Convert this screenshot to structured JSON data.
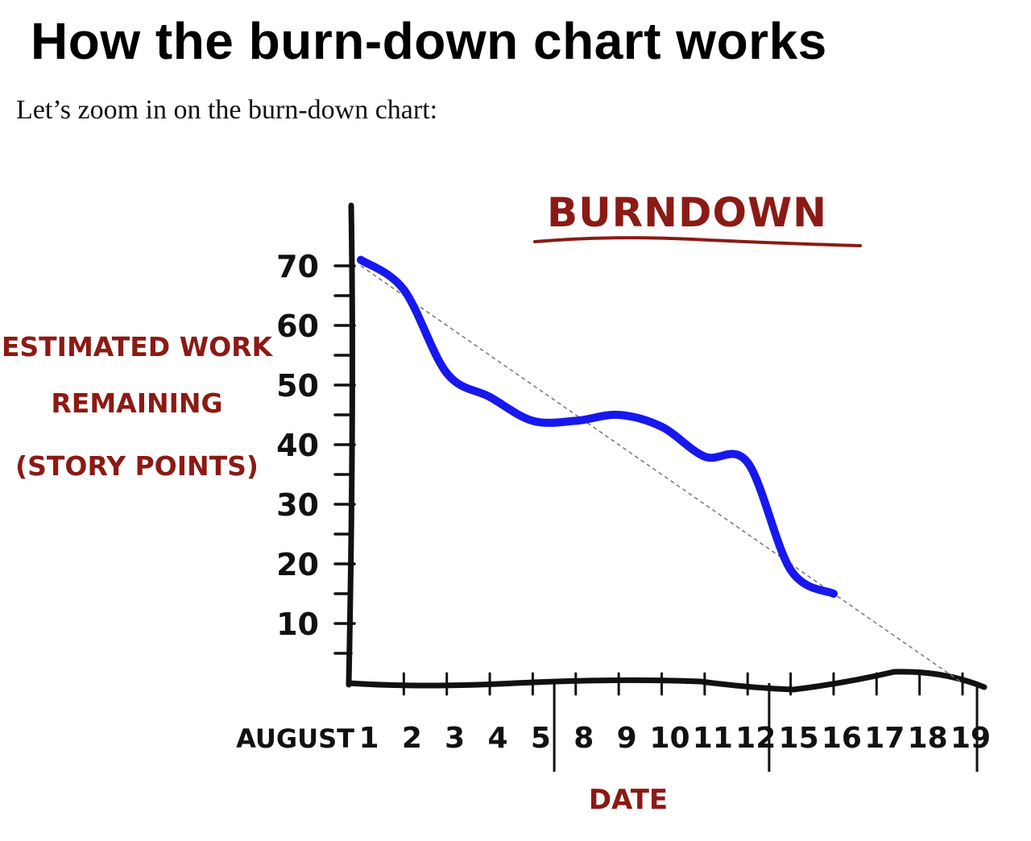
{
  "page": {
    "heading": "How the burn-down chart works",
    "intro": "Let’s zoom in on the burn-down chart:"
  },
  "colors": {
    "accent_text": "#8b1a14",
    "actual_line": "#1818ee",
    "ideal_line": "#777777",
    "axis": "#111111"
  },
  "chart_data": {
    "type": "line",
    "title": "BURNDOWN",
    "xlabel": "DATE",
    "ylabel": [
      "ESTIMATED WORK",
      "REMAINING",
      "(STORY POINTS)"
    ],
    "x_prefix": "AUGUST",
    "categories": [
      "1",
      "2",
      "3",
      "4",
      "5",
      "8",
      "9",
      "10",
      "11",
      "12",
      "15",
      "16",
      "17",
      "18",
      "19"
    ],
    "y_ticks": [
      70,
      60,
      50,
      40,
      30,
      20,
      10
    ],
    "ylim": [
      0,
      72
    ],
    "series": [
      {
        "role": "actual",
        "x": [
          "1",
          "2",
          "3",
          "4",
          "5",
          "8",
          "9",
          "10",
          "11",
          "12",
          "15",
          "16"
        ],
        "values": [
          71,
          66,
          52,
          48,
          44,
          44,
          45,
          43,
          38,
          37,
          19,
          15
        ]
      },
      {
        "role": "ideal",
        "x": [
          "1",
          "19"
        ],
        "values": [
          70,
          0
        ]
      }
    ],
    "week_separators_after": [
      "5",
      "12",
      "19"
    ],
    "grid": false,
    "legend": "none"
  }
}
